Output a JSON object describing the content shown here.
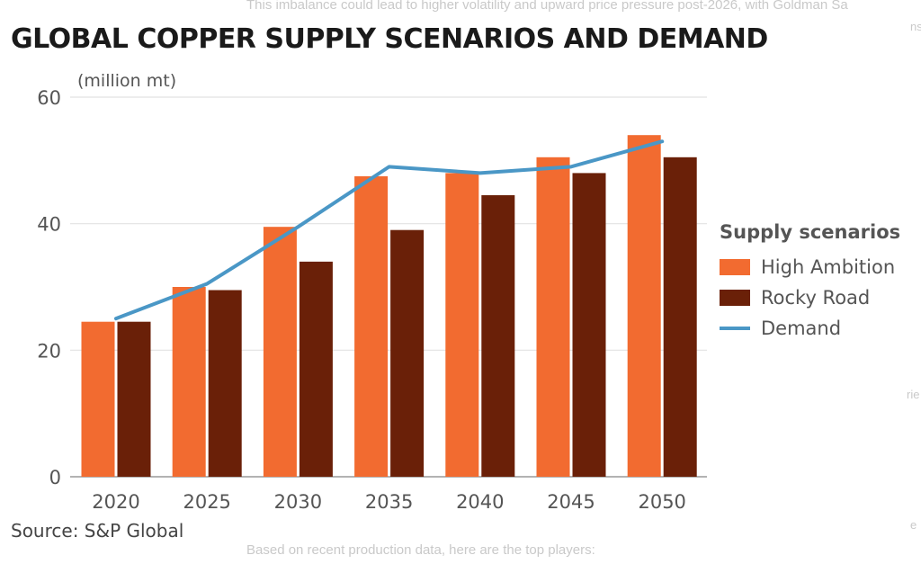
{
  "background_text": {
    "top": "This imbalance could lead to higher volatility and upward price pressure post-2026, with Goldman Sa",
    "bottom": "Based on recent production data, here are the top players:",
    "right_1": "ns",
    "right_2": "rie",
    "right_3": "e"
  },
  "chart_data": {
    "type": "bar",
    "title": "GLOBAL COPPER SUPPLY SCENARIOS AND DEMAND",
    "ylabel": "(million mt)",
    "source": "Source: S&P Global",
    "categories": [
      "2020",
      "2025",
      "2030",
      "2035",
      "2040",
      "2045",
      "2050"
    ],
    "yticks": [
      "0",
      "20",
      "40",
      "60"
    ],
    "ylim": [
      0,
      60
    ],
    "grid": true,
    "legend": {
      "title": "Supply scenarios",
      "placement": "right"
    },
    "series": [
      {
        "name": "High Ambition",
        "type": "bar",
        "color": "#f26b30",
        "values": [
          24.5,
          30,
          39.5,
          47.5,
          48,
          50.5,
          54
        ]
      },
      {
        "name": "Rocky Road",
        "type": "bar",
        "color": "#6a2008",
        "values": [
          24.5,
          29.5,
          34,
          39,
          44.5,
          48,
          50.5
        ]
      },
      {
        "name": "Demand",
        "type": "line",
        "color": "#4a97c6",
        "values": [
          25,
          30.5,
          39.5,
          49,
          48,
          49,
          53
        ]
      }
    ]
  }
}
